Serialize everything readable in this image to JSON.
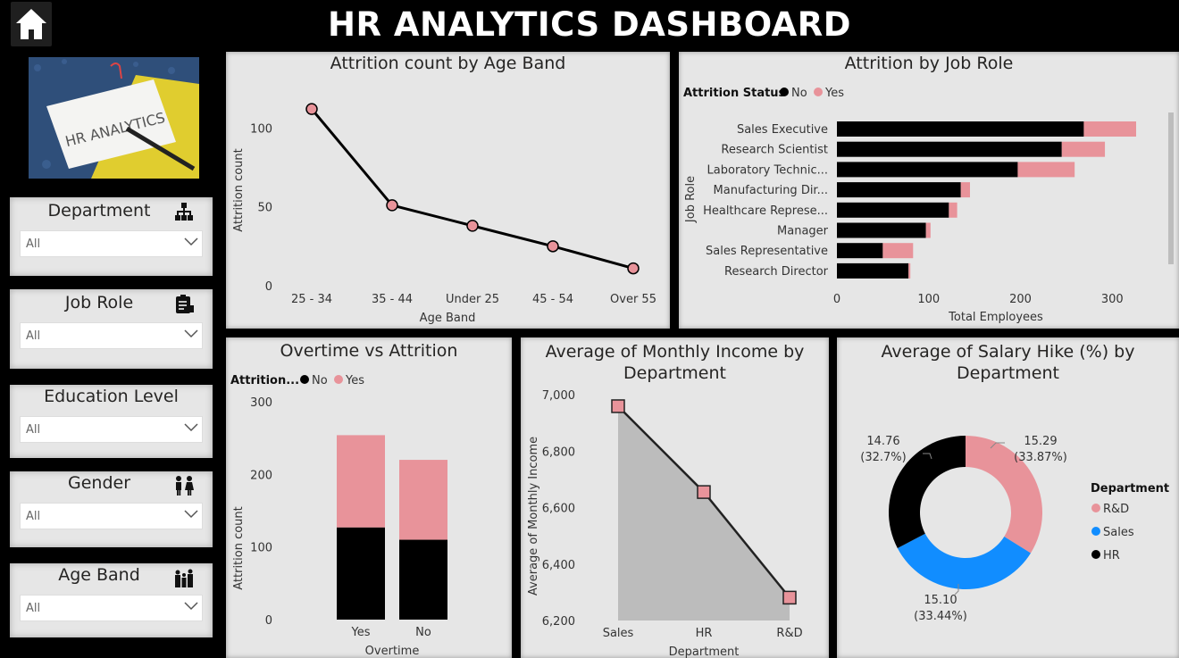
{
  "header": {
    "title": "HR ANALYTICS DASHBOARD",
    "home_icon": "home-icon"
  },
  "hero_image": {
    "text": "HR ANALYTICS"
  },
  "slicers": [
    {
      "label": "Department",
      "value": "All",
      "icon": "org-chart-icon"
    },
    {
      "label": "Job Role",
      "value": "All",
      "icon": "clipboard-icon"
    },
    {
      "label": "Education Level",
      "value": "All",
      "icon": ""
    },
    {
      "label": "Gender",
      "value": "All",
      "icon": "people-icon"
    },
    {
      "label": "Age Band",
      "value": "All",
      "icon": "family-icon"
    }
  ],
  "colors": {
    "no": "#000000",
    "yes": "#e8939a",
    "sales": "#118dff",
    "panel": "#e6e6e6"
  },
  "chart_data": [
    {
      "id": "age",
      "type": "line",
      "title": "Attrition count by Age Band",
      "xlabel": "Age Band",
      "ylabel": "Attrition count",
      "categories": [
        "25 - 34",
        "35 - 44",
        "Under 25",
        "45 - 54",
        "Over 55"
      ],
      "values": [
        112,
        51,
        38,
        25,
        11
      ],
      "yticks": [
        0,
        50,
        100
      ],
      "ylim": [
        0,
        120
      ]
    },
    {
      "id": "role",
      "type": "bar",
      "orientation": "horizontal",
      "stacked": true,
      "title": "Attrition by Job Role",
      "legend_title": "Attrition Status",
      "xlabel": "Total Employees",
      "ylabel": "Job Role",
      "categories": [
        "Sales Executive",
        "Research Scientist",
        "Laboratory Technic...",
        "Manufacturing Dir...",
        "Healthcare Represe...",
        "Manager",
        "Sales Representative",
        "Research Director"
      ],
      "series": [
        {
          "name": "No",
          "values": [
            269,
            245,
            197,
            135,
            122,
            97,
            50,
            78
          ]
        },
        {
          "name": "Yes",
          "values": [
            57,
            47,
            62,
            10,
            9,
            5,
            33,
            2
          ]
        }
      ],
      "xticks": [
        0,
        100,
        200,
        300
      ],
      "xlim": [
        0,
        326
      ]
    },
    {
      "id": "overtime",
      "type": "bar",
      "stacked": true,
      "title": "Overtime vs Attrition",
      "legend_title": "Attrition...",
      "xlabel": "Overtime",
      "ylabel": "Attrition count",
      "categories": [
        "Yes",
        "No"
      ],
      "series": [
        {
          "name": "No",
          "values": [
            127,
            110
          ]
        },
        {
          "name": "Yes",
          "values": [
            127,
            110
          ]
        }
      ],
      "yticks": [
        0,
        100,
        200,
        300
      ],
      "ylim": [
        0,
        300
      ]
    },
    {
      "id": "income",
      "type": "area",
      "title": "Average of Monthly Income by Department",
      "xlabel": "Department",
      "ylabel": "Average of Monthly Income",
      "categories": [
        "Sales",
        "HR",
        "R&D"
      ],
      "values": [
        6959,
        6655,
        6281
      ],
      "yticks": [
        "6,200",
        "6,400",
        "6,600",
        "6,800",
        "7,000"
      ],
      "ylim": [
        6200,
        7000
      ]
    },
    {
      "id": "hike",
      "type": "pie",
      "donut": true,
      "title": "Average of Salary Hike (%) by Department",
      "legend_title": "Department",
      "labels": [
        "R&D",
        "Sales",
        "HR"
      ],
      "values": [
        15.29,
        15.1,
        14.76
      ],
      "value_labels": [
        "15.29",
        "15.10",
        "14.76"
      ],
      "pct_labels": [
        "(33.87%)",
        "(33.44%)",
        "(32.7%)"
      ],
      "colors": [
        "#e8939a",
        "#118dff",
        "#000000"
      ]
    }
  ]
}
